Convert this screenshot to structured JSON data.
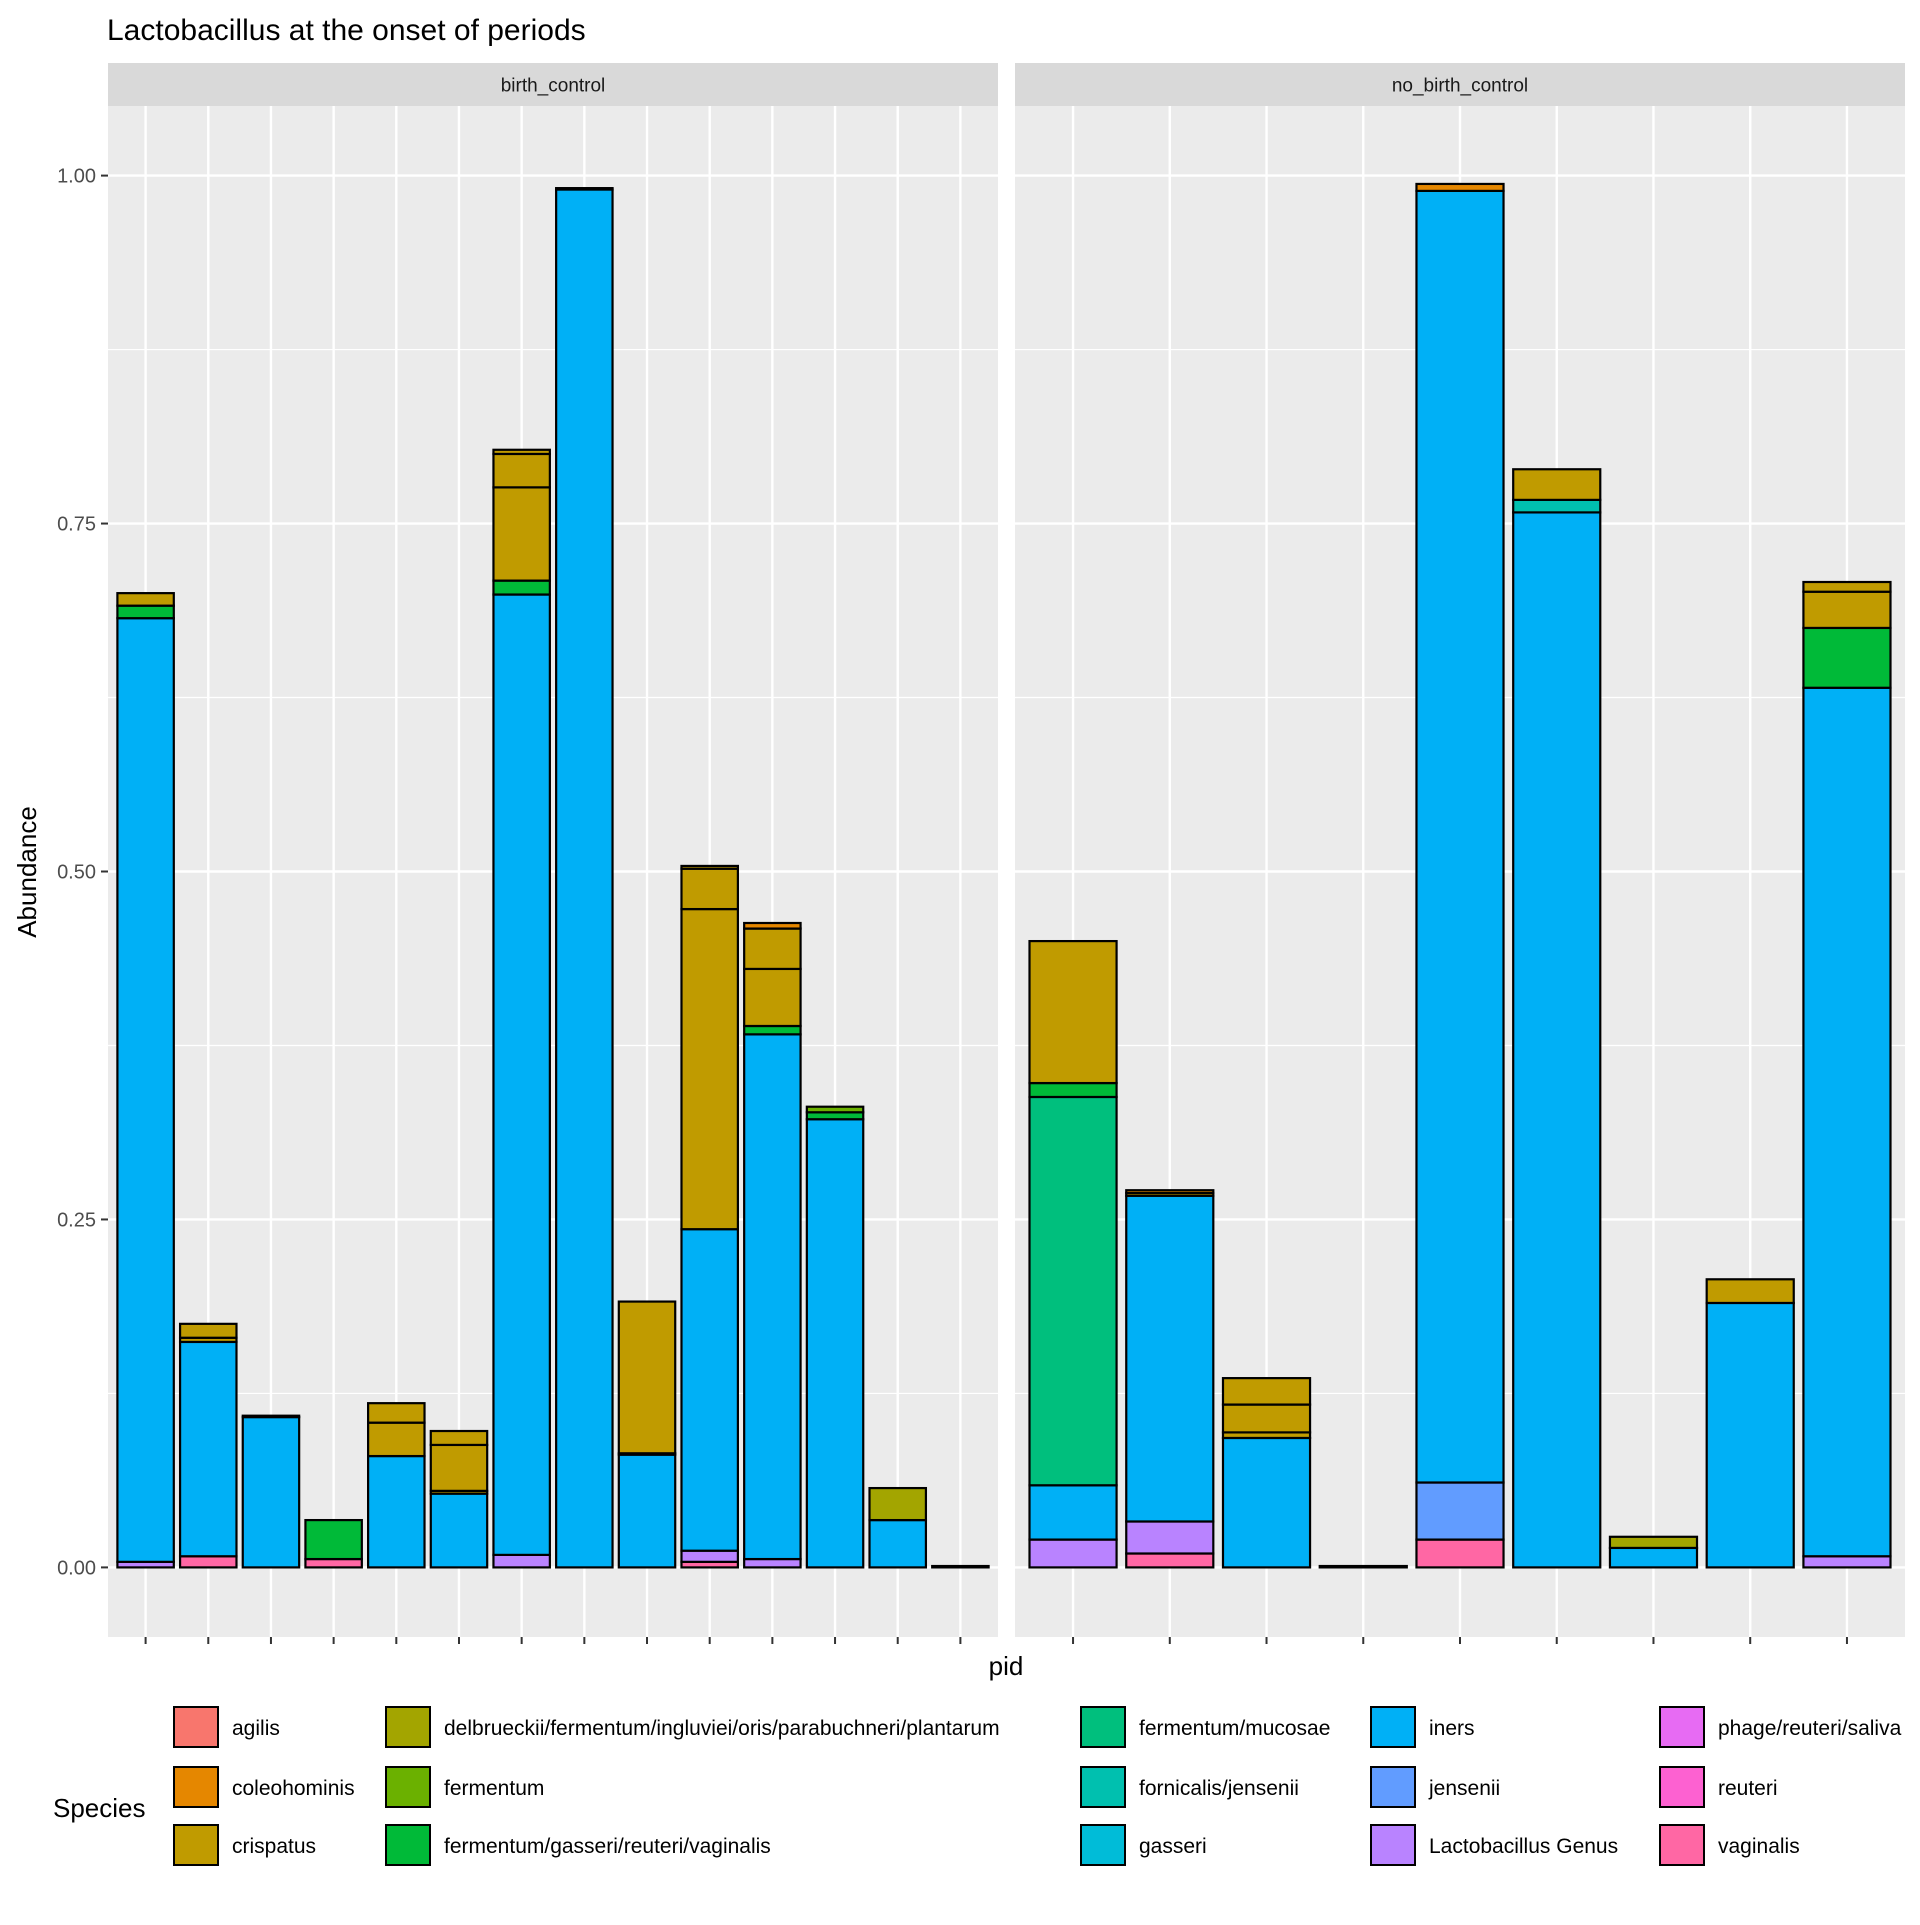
{
  "chart_data": {
    "type": "bar",
    "stacked": true,
    "title": "Lactobacillus at the onset of periods",
    "xlabel": "pid",
    "ylabel": "Abundance",
    "ylim": [
      -0.05,
      1.05
    ],
    "yticks": [
      0.0,
      0.25,
      0.5,
      0.75,
      1.0
    ],
    "ytick_labels": [
      "0.00",
      "0.25",
      "0.50",
      "0.75",
      "1.00"
    ],
    "grid": true,
    "legend_position": "bottom",
    "legend_title": "Species",
    "species": [
      {
        "name": "agilis",
        "color": "#F8766D"
      },
      {
        "name": "coleohominis",
        "color": "#E58700"
      },
      {
        "name": "crispatus",
        "color": "#C09B00"
      },
      {
        "name": "delbrueckii/fermentum/ingluviei/oris/parabuchneri/plantarum",
        "color": "#A3A500"
      },
      {
        "name": "fermentum",
        "color": "#6BB100"
      },
      {
        "name": "fermentum/gasseri/reuteri/vaginalis",
        "color": "#00BA38"
      },
      {
        "name": "fermentum/mucosae",
        "color": "#00BF7D"
      },
      {
        "name": "fornicalis/jensenii",
        "color": "#00C0AF"
      },
      {
        "name": "gasseri",
        "color": "#00BCD8"
      },
      {
        "name": "iners",
        "color": "#00B0F6"
      },
      {
        "name": "jensenii",
        "color": "#619CFF"
      },
      {
        "name": "Lactobacillus Genus",
        "color": "#B983FF"
      },
      {
        "name": "phage/reuteri/saliva",
        "color": "#E76BF3"
      },
      {
        "name": "reuteri",
        "color": "#FD61D1"
      },
      {
        "name": "vaginalis",
        "color": "#FF67A4"
      }
    ],
    "panels": [
      {
        "label": "birth_control",
        "bars": [
          [
            [
              "Lactobacillus Genus",
              0.004
            ],
            [
              "iners",
              0.678
            ],
            [
              "fermentum/gasseri/reuteri/vaginalis",
              0.009
            ],
            [
              "crispatus",
              0.009
            ]
          ],
          [
            [
              "vaginalis",
              0.008
            ],
            [
              "iners",
              0.154
            ],
            [
              "crispatus",
              0.003
            ],
            [
              "crispatus",
              0.01
            ]
          ],
          [
            [
              "iners",
              0.108
            ],
            [
              "crispatus",
              0.001
            ]
          ],
          [
            [
              "vaginalis",
              0.006
            ],
            [
              "fermentum/gasseri/reuteri/vaginalis",
              0.028
            ]
          ],
          [
            [
              "iners",
              0.08
            ],
            [
              "crispatus",
              0.024
            ],
            [
              "crispatus",
              0.014
            ]
          ],
          [
            [
              "iners",
              0.053
            ],
            [
              "crispatus",
              0.002
            ],
            [
              "crispatus",
              0.033
            ],
            [
              "crispatus",
              0.01
            ]
          ],
          [
            [
              "Lactobacillus Genus",
              0.009
            ],
            [
              "iners",
              0.69
            ],
            [
              "fermentum/gasseri/reuteri/vaginalis",
              0.01
            ],
            [
              "crispatus",
              0.067
            ],
            [
              "crispatus",
              0.024
            ],
            [
              "crispatus",
              0.003
            ]
          ],
          [
            [
              "iners",
              0.99
            ],
            [
              "crispatus",
              0.001
            ]
          ],
          [
            [
              "iners",
              0.081
            ],
            [
              "crispatus",
              0.001
            ],
            [
              "crispatus",
              0.109
            ]
          ],
          [
            [
              "vaginalis",
              0.004
            ],
            [
              "Lactobacillus Genus",
              0.008
            ],
            [
              "iners",
              0.231
            ],
            [
              "crispatus",
              0.23
            ],
            [
              "crispatus",
              0.029
            ],
            [
              "crispatus",
              0.002
            ]
          ],
          [
            [
              "Lactobacillus Genus",
              0.006
            ],
            [
              "iners",
              0.377
            ],
            [
              "fermentum/gasseri/reuteri/vaginalis",
              0.006
            ],
            [
              "crispatus",
              0.041
            ],
            [
              "crispatus",
              0.029
            ],
            [
              "coleohominis",
              0.004
            ]
          ],
          [
            [
              "iners",
              0.322
            ],
            [
              "fermentum/gasseri/reuteri/vaginalis",
              0.005
            ],
            [
              "fermentum",
              0.004
            ]
          ],
          [
            [
              "iners",
              0.034
            ],
            [
              "delbrueckii/fermentum/ingluviei/oris/parabuchneri/plantarum",
              0.023
            ]
          ],
          [
            [
              "iners",
              0.001
            ]
          ]
        ]
      },
      {
        "label": "no_birth_control",
        "bars": [
          [
            [
              "Lactobacillus Genus",
              0.02
            ],
            [
              "iners",
              0.039
            ],
            [
              "fermentum/mucosae",
              0.279
            ],
            [
              "fermentum/gasseri/reuteri/vaginalis",
              0.01
            ],
            [
              "crispatus",
              0.102
            ]
          ],
          [
            [
              "vaginalis",
              0.01
            ],
            [
              "Lactobacillus Genus",
              0.023
            ],
            [
              "iners",
              0.234
            ],
            [
              "crispatus",
              0.002
            ],
            [
              "coleohominis",
              0.002
            ]
          ],
          [
            [
              "iners",
              0.093
            ],
            [
              "crispatus",
              0.004
            ],
            [
              "crispatus",
              0.02
            ],
            [
              "crispatus",
              0.019
            ]
          ],
          [
            [
              "iners",
              0.001
            ]
          ],
          [
            [
              "vaginalis",
              0.02
            ],
            [
              "jensenii",
              0.041
            ],
            [
              "iners",
              0.928
            ],
            [
              "coleohominis",
              0.005
            ]
          ],
          [
            [
              "iners",
              0.758
            ],
            [
              "fornicalis/jensenii",
              0.009
            ],
            [
              "crispatus",
              0.022
            ]
          ],
          [
            [
              "iners",
              0.014
            ],
            [
              "delbrueckii/fermentum/ingluviei/oris/parabuchneri/plantarum",
              0.008
            ]
          ],
          [
            [
              "iners",
              0.19
            ],
            [
              "crispatus",
              0.017
            ]
          ],
          [
            [
              "Lactobacillus Genus",
              0.008
            ],
            [
              "iners",
              0.624
            ],
            [
              "fermentum/gasseri/reuteri/vaginalis",
              0.043
            ],
            [
              "crispatus",
              0.026
            ],
            [
              "crispatus",
              0.007
            ]
          ]
        ]
      }
    ]
  }
}
